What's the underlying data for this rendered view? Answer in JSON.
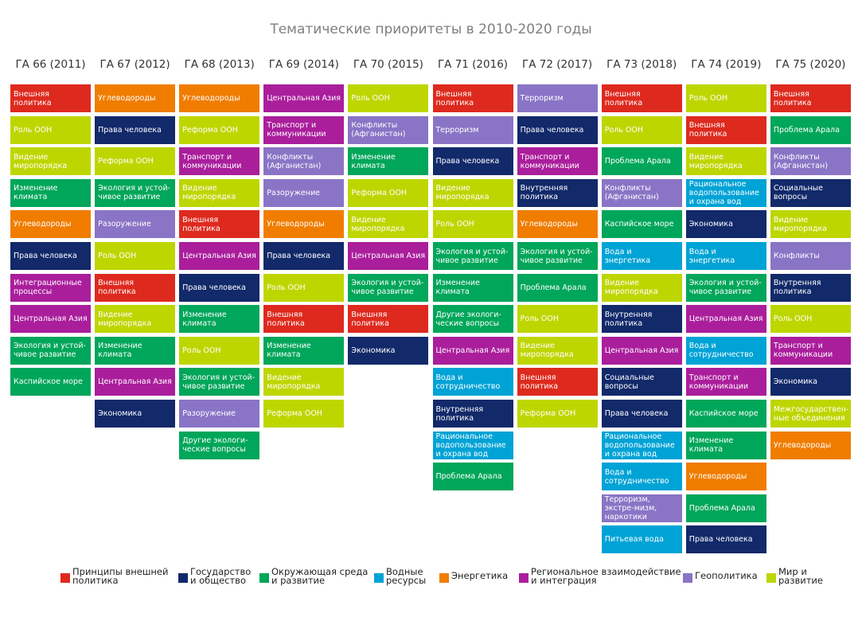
{
  "title": "Тематические приоритеты в 2010-2020 годы",
  "categories": {
    "foreign": {
      "label": "Принципы внешней\nполитика",
      "color": "#DE2A1E"
    },
    "state": {
      "label": "Государство\nи общество",
      "color": "#12296A"
    },
    "env": {
      "label": "Окружающая среда\nи развитие",
      "color": "#00A65A"
    },
    "water": {
      "label": "Водные\nресурсы",
      "color": "#00A3D6"
    },
    "energy": {
      "label": "Энергетика",
      "color": "#F07D00"
    },
    "regional": {
      "label": "Региональное взаимодействие\nи интеграция",
      "color": "#AA1E9C"
    },
    "geo": {
      "label": "Геополитика",
      "color": "#8A74C6"
    },
    "peace": {
      "label": "Мир и\nразвитие",
      "color": "#BED600"
    }
  },
  "legend_order": [
    "foreign",
    "state",
    "env",
    "water",
    "energy",
    "regional",
    "geo",
    "peace"
  ],
  "columns": [
    {
      "header": "ГА 66 (2011)",
      "items": [
        {
          "text": "Внешняя политика",
          "cat": "foreign"
        },
        {
          "text": "Роль ООН",
          "cat": "peace"
        },
        {
          "text": "Видение миропорядка",
          "cat": "peace"
        },
        {
          "text": "Изменение климата",
          "cat": "env"
        },
        {
          "text": "Углеводороды",
          "cat": "energy"
        },
        {
          "text": "Права человека",
          "cat": "state"
        },
        {
          "text": "Интеграционные процессы",
          "cat": "regional"
        },
        {
          "text": "Центральная Азия",
          "cat": "regional"
        },
        {
          "text": "Экология и устой-чивое развитие",
          "cat": "env"
        },
        {
          "text": "Каспийское море",
          "cat": "env"
        }
      ]
    },
    {
      "header": "ГА 67 (2012)",
      "items": [
        {
          "text": "Углеводороды",
          "cat": "energy"
        },
        {
          "text": "Права человека",
          "cat": "state"
        },
        {
          "text": "Реформа ООН",
          "cat": "peace"
        },
        {
          "text": "Экология и устой-чивое развитие",
          "cat": "env"
        },
        {
          "text": "Разоружение",
          "cat": "geo"
        },
        {
          "text": "Роль ООН",
          "cat": "peace"
        },
        {
          "text": "Внешняя политика",
          "cat": "foreign"
        },
        {
          "text": "Видение миропорядка",
          "cat": "peace"
        },
        {
          "text": "Изменение климата",
          "cat": "env"
        },
        {
          "text": "Центральная Азия",
          "cat": "regional"
        },
        {
          "text": "Экономика",
          "cat": "state"
        }
      ]
    },
    {
      "header": "ГА 68 (2013)",
      "items": [
        {
          "text": "Углеводороды",
          "cat": "energy"
        },
        {
          "text": "Реформа ООН",
          "cat": "peace"
        },
        {
          "text": "Транспорт и коммуникации",
          "cat": "regional"
        },
        {
          "text": "Видение миропорядка",
          "cat": "peace"
        },
        {
          "text": "Внешняя политика",
          "cat": "foreign"
        },
        {
          "text": "Центральная Азия",
          "cat": "regional"
        },
        {
          "text": "Права человека",
          "cat": "state"
        },
        {
          "text": "Изменение климата",
          "cat": "env"
        },
        {
          "text": "Роль ООН",
          "cat": "peace"
        },
        {
          "text": "Экология и устой-чивое развитие",
          "cat": "env"
        },
        {
          "text": "Разоружение",
          "cat": "geo"
        },
        {
          "text": "Другие экологи-ческие вопросы",
          "cat": "env"
        }
      ]
    },
    {
      "header": "ГА 69 (2014)",
      "items": [
        {
          "text": "Центральная Азия",
          "cat": "regional"
        },
        {
          "text": "Транспорт и коммуникации",
          "cat": "regional"
        },
        {
          "text": "Конфликты (Афганистан)",
          "cat": "geo"
        },
        {
          "text": "Разоружение",
          "cat": "geo"
        },
        {
          "text": "Углеводороды",
          "cat": "energy"
        },
        {
          "text": "Права человека",
          "cat": "state"
        },
        {
          "text": "Роль ООН",
          "cat": "peace"
        },
        {
          "text": "Внешняя политика",
          "cat": "foreign"
        },
        {
          "text": "Изменение климата",
          "cat": "env"
        },
        {
          "text": "Видение миропорядка",
          "cat": "peace"
        },
        {
          "text": "Реформа ООН",
          "cat": "peace"
        }
      ]
    },
    {
      "header": "ГА 70 (2015)",
      "items": [
        {
          "text": "Роль ООН",
          "cat": "peace"
        },
        {
          "text": "Конфликты (Афганистан)",
          "cat": "geo"
        },
        {
          "text": "Изменение климата",
          "cat": "env"
        },
        {
          "text": "Реформа ООН",
          "cat": "peace"
        },
        {
          "text": "Видение миропорядка",
          "cat": "peace"
        },
        {
          "text": "Центральная Азия",
          "cat": "regional"
        },
        {
          "text": "Экология и устой-чивое развитие",
          "cat": "env"
        },
        {
          "text": "Внешняя политика",
          "cat": "foreign"
        },
        {
          "text": "Экономика",
          "cat": "state"
        }
      ]
    },
    {
      "header": "ГА 71 (2016)",
      "items": [
        {
          "text": "Внешняя политика",
          "cat": "foreign"
        },
        {
          "text": "Терроризм",
          "cat": "geo"
        },
        {
          "text": "Права человека",
          "cat": "state"
        },
        {
          "text": "Видение миропорядка",
          "cat": "peace"
        },
        {
          "text": "Роль ООН",
          "cat": "peace"
        },
        {
          "text": "Экология и устой-чивое развитие",
          "cat": "env"
        },
        {
          "text": "Изменение климата",
          "cat": "env"
        },
        {
          "text": "Другие экологи-ческие вопросы",
          "cat": "env"
        },
        {
          "text": "Центральная Азия",
          "cat": "regional"
        },
        {
          "text": "Вода и сотрудничество",
          "cat": "water"
        },
        {
          "text": "Внутренняя политика",
          "cat": "state"
        },
        {
          "text": "Рациональное водопользование и охрана вод",
          "cat": "water"
        },
        {
          "text": "Проблема Арала",
          "cat": "env"
        }
      ]
    },
    {
      "header": "ГА 72 (2017)",
      "items": [
        {
          "text": "Терроризм",
          "cat": "geo"
        },
        {
          "text": "Права человека",
          "cat": "state"
        },
        {
          "text": "Транспорт и коммуникации",
          "cat": "regional"
        },
        {
          "text": "Внутренняя политика",
          "cat": "state"
        },
        {
          "text": "Углеводороды",
          "cat": "energy"
        },
        {
          "text": "Экология и устой-чивое развитие",
          "cat": "env"
        },
        {
          "text": "Проблема Арала",
          "cat": "env"
        },
        {
          "text": "Роль ООН",
          "cat": "peace"
        },
        {
          "text": "Видение миропорядка",
          "cat": "peace"
        },
        {
          "text": "Внешняя политика",
          "cat": "foreign"
        },
        {
          "text": "Реформа ООН",
          "cat": "peace"
        }
      ]
    },
    {
      "header": "ГА 73 (2018)",
      "items": [
        {
          "text": "Внешняя политика",
          "cat": "foreign"
        },
        {
          "text": "Роль ООН",
          "cat": "peace"
        },
        {
          "text": "Проблема Арала",
          "cat": "env"
        },
        {
          "text": "Конфликты (Афганистан)",
          "cat": "geo"
        },
        {
          "text": "Каспийское море",
          "cat": "env"
        },
        {
          "text": "Вода и энергетика",
          "cat": "water"
        },
        {
          "text": "Видение миропорядка",
          "cat": "peace"
        },
        {
          "text": "Внутренняя политика",
          "cat": "state"
        },
        {
          "text": "Центральная Азия",
          "cat": "regional"
        },
        {
          "text": "Социальные вопросы",
          "cat": "state"
        },
        {
          "text": "Права человека",
          "cat": "state"
        },
        {
          "text": "Рациональное водопользование и охрана вод",
          "cat": "water"
        },
        {
          "text": "Вода и сотрудничество",
          "cat": "water"
        },
        {
          "text": "Терроризм, экстре-мизм, наркотики",
          "cat": "geo"
        },
        {
          "text": "Питьевая вода",
          "cat": "water"
        }
      ]
    },
    {
      "header": "ГА 74 (2019)",
      "items": [
        {
          "text": "Роль ООН",
          "cat": "peace"
        },
        {
          "text": "Внешняя политика",
          "cat": "foreign"
        },
        {
          "text": "Видение миропорядка",
          "cat": "peace"
        },
        {
          "text": "Рациональное водопользование и охрана вод",
          "cat": "water"
        },
        {
          "text": "Экономика",
          "cat": "state"
        },
        {
          "text": "Вода и энергетика",
          "cat": "water"
        },
        {
          "text": "Экология и устой-чивое развитие",
          "cat": "env"
        },
        {
          "text": "Центральная Азия",
          "cat": "regional"
        },
        {
          "text": "Вода и сотрудничество",
          "cat": "water"
        },
        {
          "text": "Транспорт и коммуникации",
          "cat": "regional"
        },
        {
          "text": "Каспийское море",
          "cat": "env"
        },
        {
          "text": "Изменение климата",
          "cat": "env"
        },
        {
          "text": "Углеводороды",
          "cat": "energy"
        },
        {
          "text": "Проблема Арала",
          "cat": "env"
        },
        {
          "text": "Права человека",
          "cat": "state"
        }
      ]
    },
    {
      "header": "ГА 75 (2020)",
      "items": [
        {
          "text": "Внешняя политика",
          "cat": "foreign"
        },
        {
          "text": "Проблема Арала",
          "cat": "env"
        },
        {
          "text": "Конфликты (Афганистан)",
          "cat": "geo"
        },
        {
          "text": "Социальные вопросы",
          "cat": "state"
        },
        {
          "text": "Видение миропорядка",
          "cat": "peace"
        },
        {
          "text": "Конфликты",
          "cat": "geo"
        },
        {
          "text": "Внутренняя политика",
          "cat": "state"
        },
        {
          "text": "Роль ООН",
          "cat": "peace"
        },
        {
          "text": "Транспорт и коммуникации",
          "cat": "regional"
        },
        {
          "text": "Экономика",
          "cat": "state"
        },
        {
          "text": "Межгосударствен-ные объединения",
          "cat": "peace"
        },
        {
          "text": "Углеводороды",
          "cat": "energy"
        }
      ]
    }
  ]
}
